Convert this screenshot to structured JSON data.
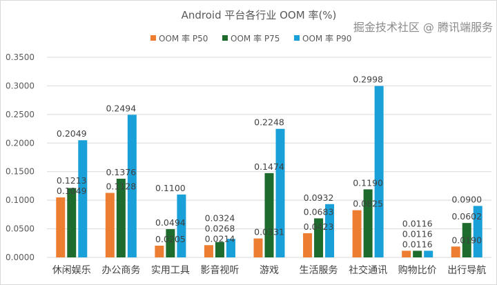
{
  "chart_data": {
    "type": "bar",
    "title": "Android 平台各行业 OOM 率(%)",
    "xlabel": "",
    "ylabel": "",
    "ylim": [
      0,
      0.35
    ],
    "yticks": [
      "0.0000",
      "0.0500",
      "0.1000",
      "0.1500",
      "0.2000",
      "0.2500",
      "0.3000",
      "0.3500"
    ],
    "grid": true,
    "legend_position": "top",
    "categories": [
      "休闲娱乐",
      "办公商务",
      "实用工具",
      "影音视听",
      "游戏",
      "生活服务",
      "社交通讯",
      "购物比价",
      "出行导航"
    ],
    "series": [
      {
        "name": "OOM 率 P50",
        "color": "#ED7D31",
        "values": [
          0.1049,
          0.1128,
          0.0205,
          0.0214,
          0.0331,
          0.0423,
          0.0825,
          0.0116,
          0.019
        ]
      },
      {
        "name": "OOM 率 P75",
        "color": "#1E6B2E",
        "values": [
          0.1213,
          0.1376,
          0.0494,
          0.0268,
          0.1474,
          0.0683,
          0.119,
          0.0116,
          0.0602
        ]
      },
      {
        "name": "OOM 率 P90",
        "color": "#1AA0D8",
        "values": [
          0.2049,
          0.2494,
          0.11,
          0.0324,
          0.2248,
          0.0932,
          0.2998,
          0.0116,
          0.09
        ]
      }
    ]
  },
  "watermark": "掘金技术社区 @ 腾讯端服务"
}
